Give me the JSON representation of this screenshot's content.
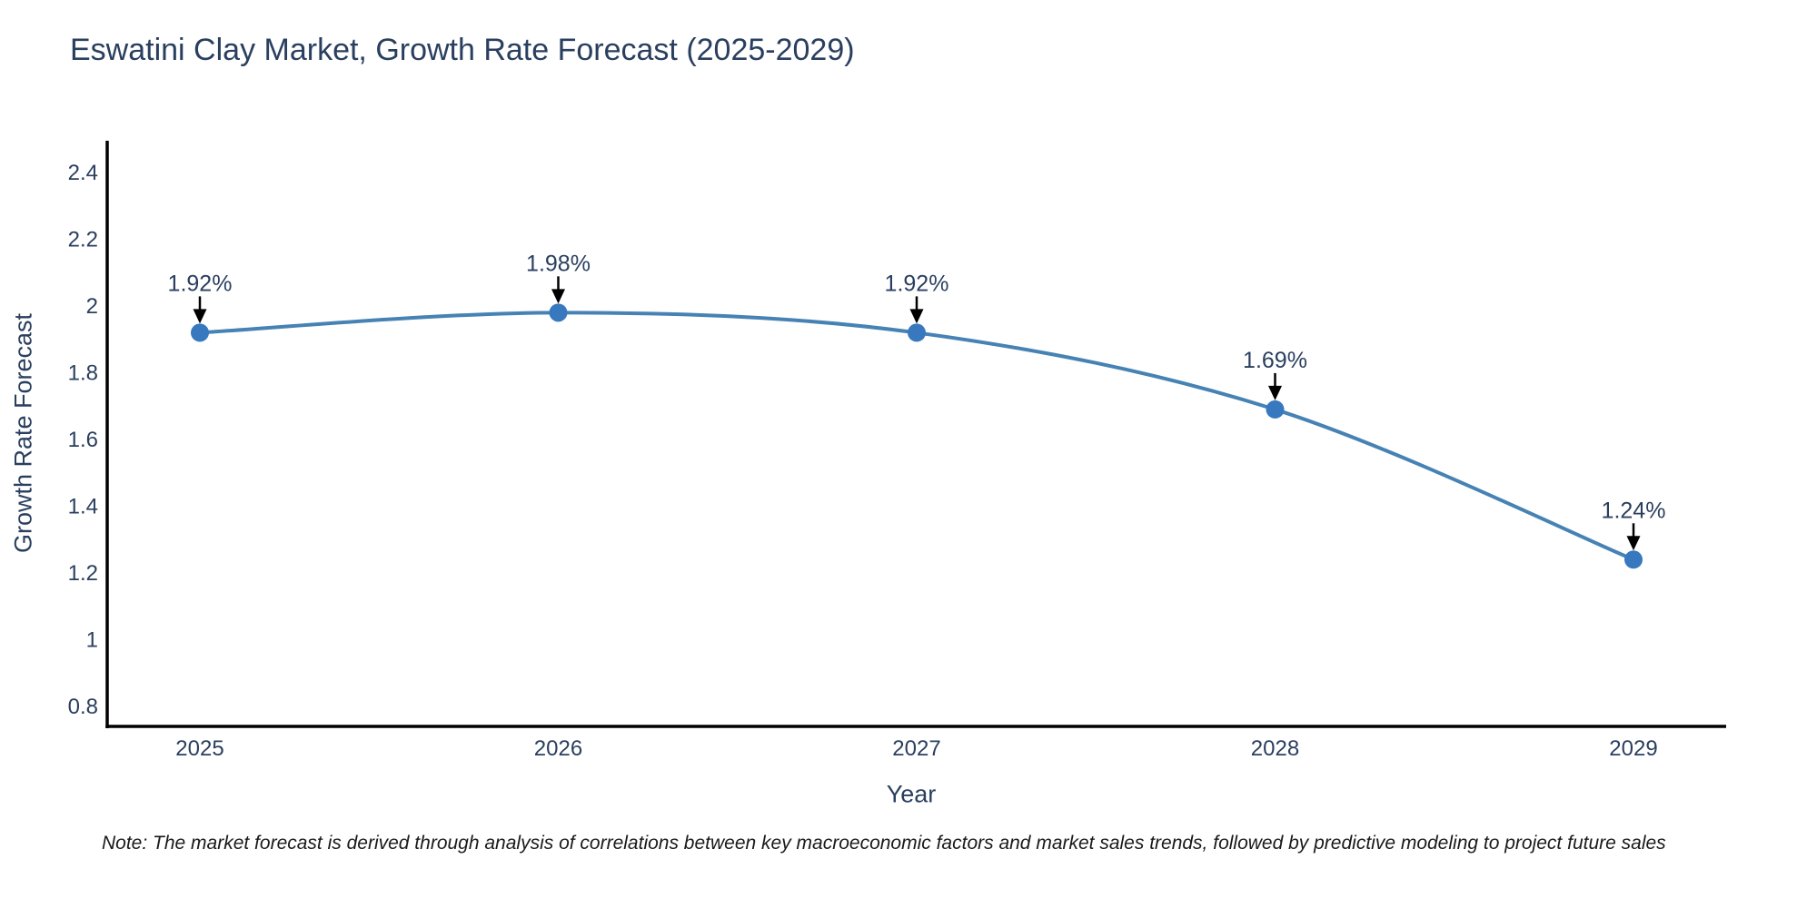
{
  "page": {
    "note": "Note: The market forecast is derived through analysis of correlations between key macroeconomic factors and market sales trends, followed by predictive modeling to project future sales"
  },
  "chart_data": {
    "type": "line",
    "title": "Eswatini Clay Market, Growth Rate Forecast (2025-2029)",
    "xlabel": "Year",
    "ylabel": "Growth Rate Forecast",
    "categories": [
      "2025",
      "2026",
      "2027",
      "2028",
      "2029"
    ],
    "series": [
      {
        "name": "Growth Rate Forecast",
        "values": [
          1.92,
          1.98,
          1.92,
          1.69,
          1.24
        ]
      }
    ],
    "point_labels": [
      "1.92%",
      "1.98%",
      "1.92%",
      "1.69%",
      "1.24%"
    ],
    "ytick_values": [
      0.8,
      1.0,
      1.2,
      1.4,
      1.6,
      1.8,
      2.0,
      2.2,
      2.4
    ],
    "ytick_labels": [
      "0.8",
      "1",
      "1.2",
      "1.4",
      "1.6",
      "1.8",
      "2",
      "2.2",
      "2.4"
    ],
    "ylim": [
      0.74,
      2.5
    ],
    "grid": false,
    "legend": "none",
    "line_shape": "spline",
    "colors": {
      "line": "#4682b4",
      "marker": "#3778bf",
      "axis": "#000000",
      "text": "#2a3f5f",
      "arrow": "#000000"
    }
  }
}
